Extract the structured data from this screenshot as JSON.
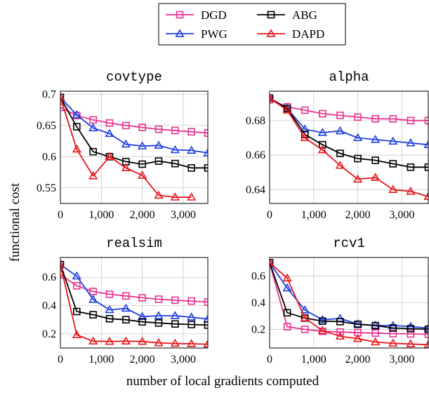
{
  "figure": {
    "ylabel": "functional cost",
    "xlabel": "number of local gradients computed"
  },
  "legend": [
    {
      "name": "DGD",
      "color": "#e8338f",
      "marker": "square"
    },
    {
      "name": "ABG",
      "color": "#000000",
      "marker": "square"
    },
    {
      "name": "PWG",
      "color": "#1f3fe0",
      "marker": "triangle"
    },
    {
      "name": "DAPD",
      "color": "#e8161b",
      "marker": "triangle"
    }
  ],
  "chart_data": [
    {
      "type": "line",
      "title": "covtype",
      "xlim": [
        0,
        3600
      ],
      "ylim": [
        0.525,
        0.705
      ],
      "xticks": [
        0,
        1000,
        2000,
        3000
      ],
      "xtick_labels": [
        "0",
        "1,000",
        "2,000",
        "3,000"
      ],
      "yticks": [
        0.55,
        0.6,
        0.65,
        0.7
      ],
      "ytick_labels": [
        "0.55",
        "0.6",
        "0.65",
        "0.7"
      ],
      "x": [
        0,
        400,
        800,
        1200,
        1600,
        2000,
        2400,
        2800,
        3200,
        3600
      ],
      "series": [
        {
          "name": "DGD",
          "values": [
            0.679,
            0.666,
            0.659,
            0.654,
            0.65,
            0.647,
            0.644,
            0.642,
            0.64,
            0.638
          ]
        },
        {
          "name": "PWG",
          "values": [
            0.695,
            0.667,
            0.646,
            0.637,
            0.62,
            0.617,
            0.618,
            0.611,
            0.61,
            0.606
          ]
        },
        {
          "name": "ABG",
          "values": [
            0.695,
            0.648,
            0.608,
            0.6,
            0.592,
            0.588,
            0.593,
            0.589,
            0.582,
            0.582
          ]
        },
        {
          "name": "DAPD",
          "values": [
            0.695,
            0.612,
            0.569,
            0.6,
            0.582,
            0.57,
            0.538,
            0.535,
            0.535,
            null
          ]
        }
      ]
    },
    {
      "type": "line",
      "title": "alpha",
      "xlim": [
        0,
        3600
      ],
      "ylim": [
        0.632,
        0.697
      ],
      "xticks": [
        0,
        1000,
        2000,
        3000
      ],
      "xtick_labels": [
        "0",
        "1,000",
        "2,000",
        "3,000"
      ],
      "yticks": [
        0.64,
        0.66,
        0.68
      ],
      "ytick_labels": [
        "0.64",
        "0.66",
        "0.68"
      ],
      "x": [
        0,
        400,
        800,
        1200,
        1600,
        2000,
        2400,
        2800,
        3200,
        3600
      ],
      "series": [
        {
          "name": "DGD",
          "values": [
            0.692,
            0.688,
            0.686,
            0.684,
            0.683,
            0.682,
            0.681,
            0.681,
            0.68,
            0.68
          ]
        },
        {
          "name": "PWG",
          "values": [
            0.693,
            0.687,
            0.675,
            0.673,
            0.674,
            0.67,
            0.669,
            0.668,
            0.667,
            0.666
          ]
        },
        {
          "name": "ABG",
          "values": [
            0.693,
            0.687,
            0.672,
            0.666,
            0.661,
            0.658,
            0.657,
            0.655,
            0.653,
            0.653
          ]
        },
        {
          "name": "DAPD",
          "values": [
            0.693,
            0.686,
            0.67,
            0.663,
            0.654,
            0.646,
            0.647,
            0.64,
            0.639,
            0.636
          ]
        }
      ]
    },
    {
      "type": "line",
      "title": "realsim",
      "xlim": [
        0,
        3600
      ],
      "ylim": [
        0.1,
        0.74
      ],
      "xticks": [
        0,
        1000,
        2000,
        3000
      ],
      "xtick_labels": [
        "0",
        "1,000",
        "2,000",
        "3,000"
      ],
      "yticks": [
        0.2,
        0.4,
        0.6
      ],
      "ytick_labels": [
        "0.2",
        "0.4",
        "0.6"
      ],
      "x": [
        0,
        400,
        800,
        1200,
        1600,
        2000,
        2400,
        2800,
        3200,
        3600
      ],
      "series": [
        {
          "name": "DGD",
          "values": [
            0.618,
            0.54,
            0.5,
            0.48,
            0.468,
            0.455,
            0.445,
            0.438,
            0.432,
            0.425
          ]
        },
        {
          "name": "PWG",
          "values": [
            0.69,
            0.608,
            0.443,
            0.37,
            0.38,
            0.322,
            0.328,
            0.328,
            0.318,
            0.305
          ]
        },
        {
          "name": "ABG",
          "values": [
            0.69,
            0.358,
            0.335,
            0.307,
            0.3,
            0.285,
            0.277,
            0.27,
            0.266,
            0.262
          ]
        },
        {
          "name": "DAPD",
          "values": [
            0.69,
            0.193,
            0.148,
            0.146,
            0.148,
            0.146,
            0.136,
            0.132,
            0.13,
            0.127
          ]
        }
      ]
    },
    {
      "type": "line",
      "title": "rcv1",
      "xlim": [
        0,
        3600
      ],
      "ylim": [
        0.06,
        0.74
      ],
      "xticks": [
        0,
        1000,
        2000,
        3000
      ],
      "xtick_labels": [
        "0",
        "1,000",
        "2,000",
        "3,000"
      ],
      "yticks": [
        0.2,
        0.4,
        0.6
      ],
      "ytick_labels": [
        "0.2",
        "0.4",
        "0.6"
      ],
      "x": [
        0,
        400,
        800,
        1200,
        1600,
        2000,
        2400,
        2800,
        3200,
        3600
      ],
      "series": [
        {
          "name": "DGD",
          "values": [
            0.7,
            0.22,
            0.2,
            0.185,
            0.18,
            0.175,
            0.172,
            0.168,
            0.166,
            0.163
          ]
        },
        {
          "name": "PWG",
          "values": [
            0.7,
            0.51,
            0.345,
            0.272,
            0.282,
            0.24,
            0.23,
            0.228,
            0.222,
            0.208
          ]
        },
        {
          "name": "ABG",
          "values": [
            0.7,
            0.325,
            0.285,
            0.262,
            0.258,
            0.238,
            0.228,
            0.21,
            0.205,
            0.2
          ]
        },
        {
          "name": "DAPD",
          "values": [
            0.7,
            0.585,
            0.285,
            0.19,
            0.148,
            0.13,
            0.105,
            0.095,
            0.09,
            0.085
          ]
        }
      ]
    }
  ]
}
